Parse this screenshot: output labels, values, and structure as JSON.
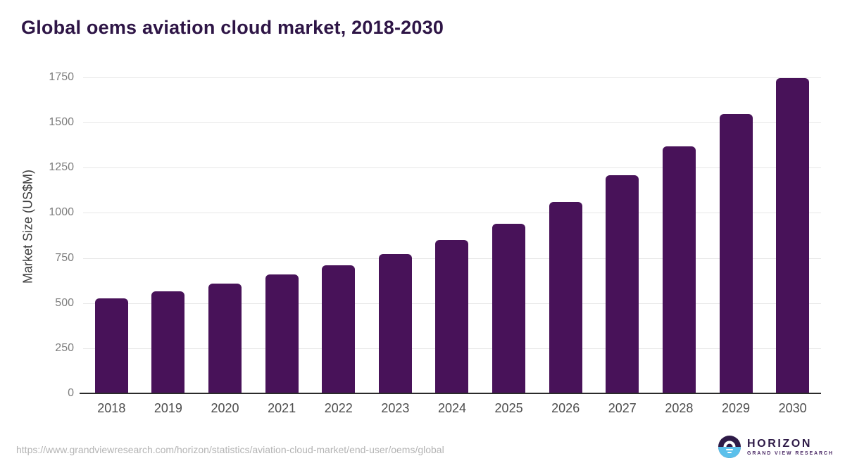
{
  "header": {
    "title": "Global oems aviation cloud market, 2018-2030"
  },
  "chart_data": {
    "type": "bar",
    "title": "Global oems aviation cloud market, 2018-2030",
    "categories": [
      "2018",
      "2019",
      "2020",
      "2021",
      "2022",
      "2023",
      "2024",
      "2025",
      "2026",
      "2027",
      "2028",
      "2029",
      "2030"
    ],
    "values": [
      525,
      566,
      610,
      658,
      711,
      770,
      851,
      940,
      1060,
      1209,
      1367,
      1549,
      1746
    ],
    "xlabel": "",
    "ylabel": "Market Size (US$M)",
    "ylim": [
      0,
      1750
    ],
    "yticks": [
      0,
      250,
      500,
      750,
      1000,
      1250,
      1500,
      1750
    ],
    "grid": true,
    "legend": false,
    "bar_color": "#481259"
  },
  "footer": {
    "source_url": "https://www.grandviewresearch.com/horizon/statistics/aviation-cloud-market/end-user/oems/global",
    "brand": {
      "name": "HORIZON",
      "subtitle": "GRAND VIEW RESEARCH"
    }
  },
  "colors": {
    "bar": "#481259",
    "title_text": "#2e1546",
    "axis_tick_text": "#7d7d7d",
    "x_tick_text": "#4d4d4d",
    "gridline": "#e7e7e7",
    "baseline": "#2b2b2b",
    "url_text": "#b4b4b4",
    "brand_purple": "#2e1a47",
    "brand_blue": "#5bc0eb"
  }
}
